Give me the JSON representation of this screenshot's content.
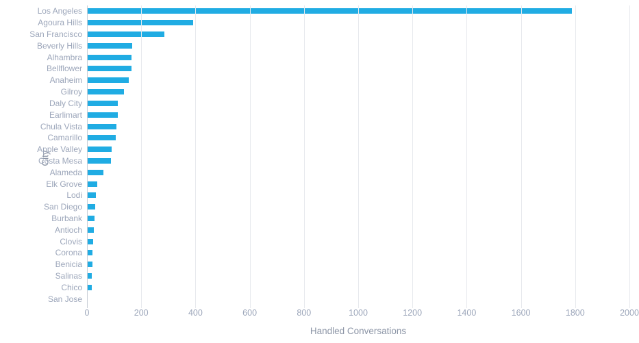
{
  "chart_data": {
    "type": "bar",
    "orientation": "horizontal",
    "title": "",
    "xlabel": "Handled Conversations",
    "ylabel": "City",
    "xlim": [
      0,
      2000
    ],
    "x_ticks": [
      0,
      200,
      400,
      600,
      800,
      1000,
      1200,
      1400,
      1600,
      1800,
      2000
    ],
    "grid": "vertical-gridlines",
    "legend": "none",
    "categories": [
      "Los Angeles",
      "Agoura Hills",
      "San Francisco",
      "Beverly Hills",
      "Alhambra",
      "Bellflower",
      "Anaheim",
      "Gilroy",
      "Daly City",
      "Earlimart",
      "Chula Vista",
      "Camarillo",
      "Apple Valley",
      "Costa Mesa",
      "Alameda",
      "Elk Grove",
      "Lodi",
      "San Diego",
      "Burbank",
      "Antioch",
      "Clovis",
      "Corona",
      "Benicia",
      "Salinas",
      "Chico",
      "San Jose"
    ],
    "values": [
      1787,
      391,
      285,
      166,
      164,
      163,
      153,
      137,
      114,
      113,
      108,
      106,
      91,
      88,
      60,
      39,
      33,
      30,
      28,
      25,
      22,
      21,
      20,
      18,
      18,
      3
    ]
  },
  "colors": {
    "bar": "#20ACE3",
    "tick_label": "#9CA6BA",
    "axis_title": "#8C95A6",
    "gridline": "#E7E9ED",
    "axis_line": "#C9CED6",
    "background": "#FFFFFF"
  }
}
